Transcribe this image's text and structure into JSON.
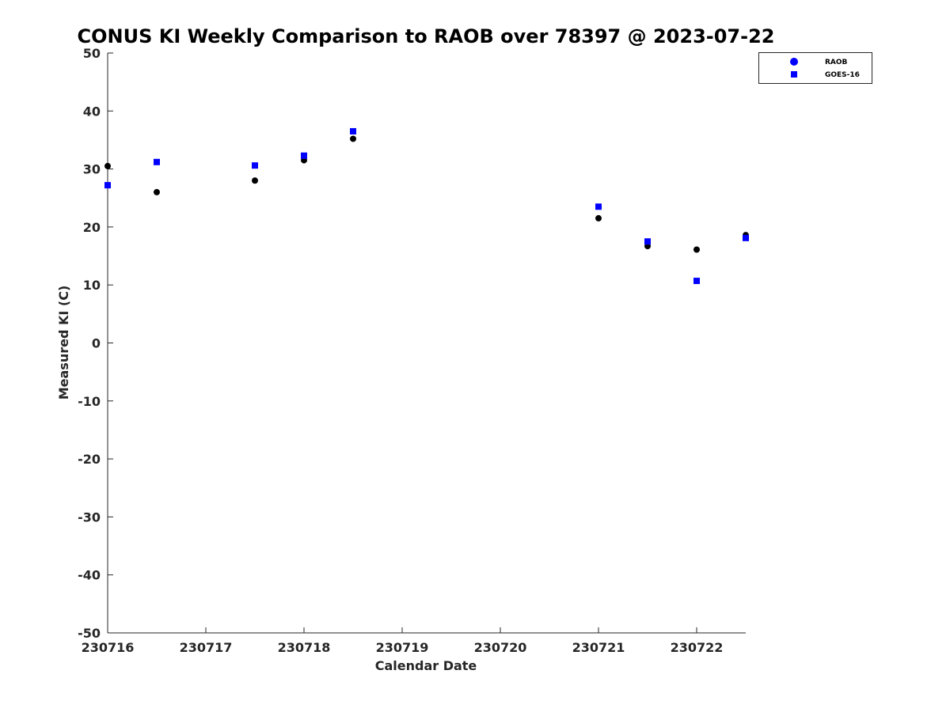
{
  "chart_data": {
    "type": "scatter",
    "title": "CONUS KI Weekly Comparison to RAOB over 78397 @ 2023-07-22",
    "xlabel": "Calendar Date",
    "ylabel": "Measured KI (C)",
    "xlim": [
      0,
      6.5
    ],
    "ylim": [
      -50,
      50
    ],
    "x_ticks": [
      0,
      1,
      2,
      3,
      4,
      5,
      6
    ],
    "x_tick_labels": [
      "230716",
      "230717",
      "230718",
      "230719",
      "230720",
      "230721",
      "230722"
    ],
    "y_ticks": [
      -50,
      -40,
      -30,
      -20,
      -10,
      0,
      10,
      20,
      30,
      40,
      50
    ],
    "y_tick_labels": [
      "-50",
      "-40",
      "-30",
      "-20",
      "-10",
      "0",
      "10",
      "20",
      "30",
      "40",
      "50"
    ],
    "legend_position": "top-right",
    "series": [
      {
        "name": "RAOB",
        "marker": "circle",
        "color": "#000000",
        "legend_color": "#0000ff",
        "x": [
          0,
          0.5,
          1.5,
          2,
          2.5,
          5,
          5.5,
          6,
          6.5
        ],
        "y": [
          30.5,
          26,
          28,
          31.5,
          35.2,
          21.5,
          16.7,
          16.1,
          18.6
        ]
      },
      {
        "name": "GOES-16",
        "marker": "square",
        "color": "#0000ff",
        "legend_color": "#0000ff",
        "x": [
          0,
          0.5,
          1.5,
          2,
          2.5,
          5,
          5.5,
          6,
          6.5
        ],
        "y": [
          27.2,
          31.2,
          30.6,
          32.3,
          36.5,
          23.5,
          17.5,
          10.7,
          18.1
        ]
      }
    ]
  }
}
